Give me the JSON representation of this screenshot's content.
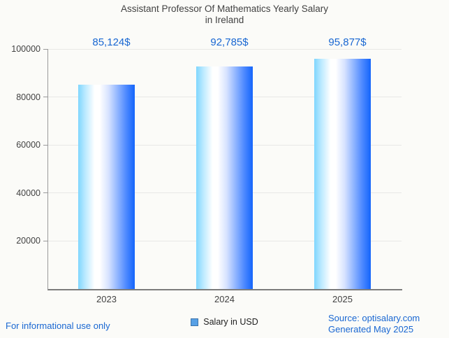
{
  "header": {
    "title_line1": "Assistant Professor Of Mathematics Yearly Salary",
    "title_line2": "in Ireland"
  },
  "chart_data": {
    "type": "bar",
    "title": "Assistant Professor Of Mathematics Yearly Salary in Ireland",
    "categories": [
      "2023",
      "2024",
      "2025"
    ],
    "series": [
      {
        "name": "Salary in USD",
        "values": [
          85124,
          92785,
          95877
        ]
      }
    ],
    "value_labels": [
      "85,124$",
      "92,785$",
      "95,877$"
    ],
    "xlabel": "",
    "ylabel": "",
    "ylim": [
      0,
      100000
    ],
    "y_ticks": [
      20000,
      40000,
      60000,
      80000,
      100000
    ],
    "grid": true,
    "legend_position": "bottom"
  },
  "legend": {
    "label": "Salary in USD",
    "marker": "blue-square-icon"
  },
  "footer": {
    "disclaimer": "For informational use only",
    "source": "Source: optisalary.com",
    "generated": "Generated May 2025"
  },
  "colors": {
    "accent_blue": "#1967d2",
    "bar_gradient_left": "#7fd6fe",
    "bar_gradient_middle": "#ffffff",
    "bar_gradient_right": "#1465fb",
    "legend_marker_fill": "#57a0e5",
    "legend_marker_border": "#3c74ab",
    "axis_text": "#424242",
    "gridline": "#e8e8e6",
    "background": "#fbfbf8"
  }
}
